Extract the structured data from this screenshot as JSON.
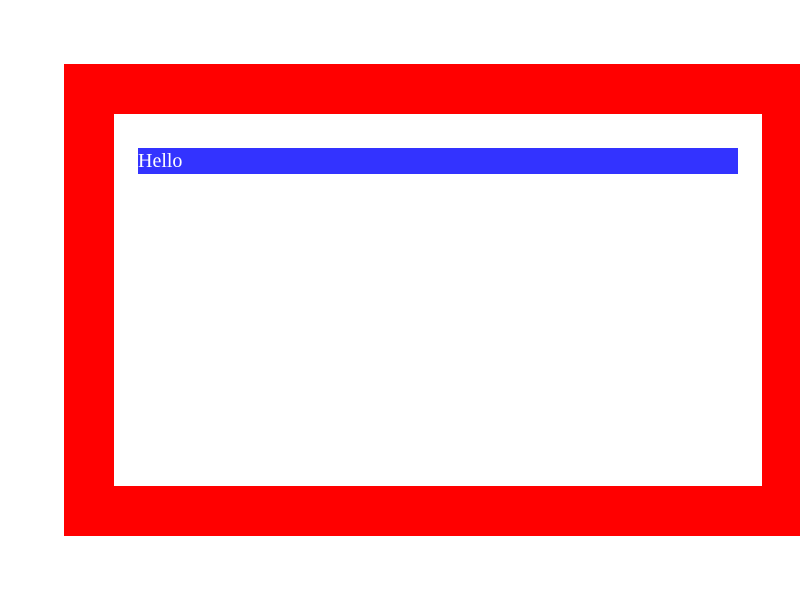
{
  "window": {
    "frame_color": "#ff0000",
    "content_background": "#ffffff"
  },
  "banner": {
    "text": "Hello",
    "background": "#3333ff",
    "text_color": "#ffffff"
  }
}
